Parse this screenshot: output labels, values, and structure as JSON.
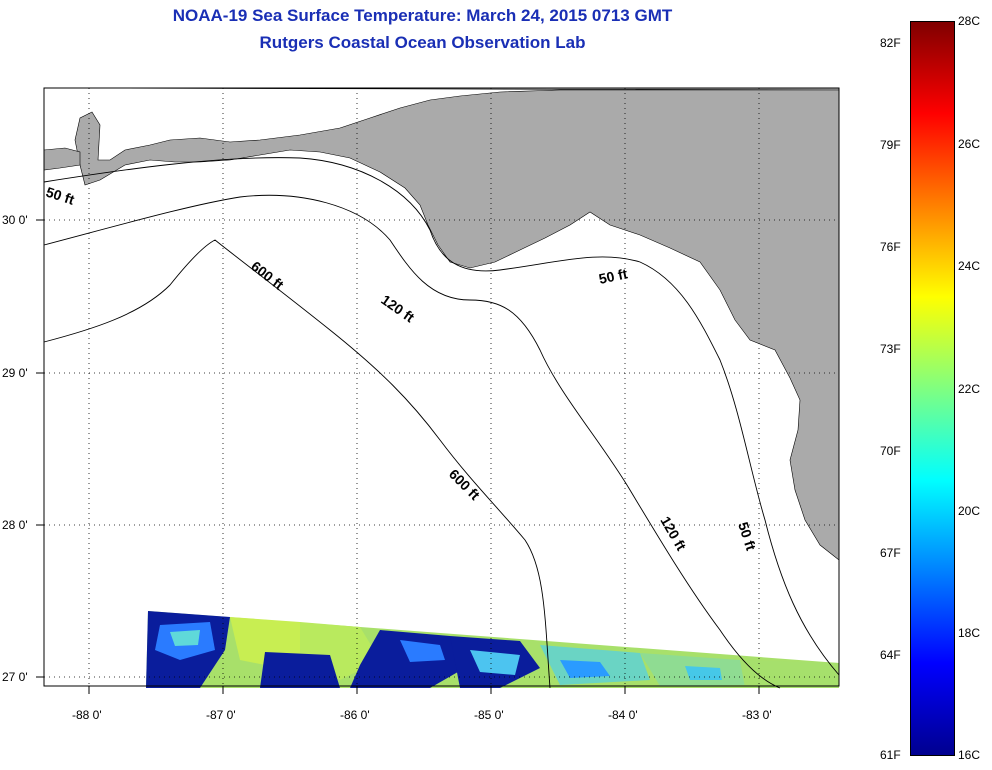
{
  "title": {
    "line1": "NOAA-19 Sea Surface Temperature:  March 24, 2015 0713 GMT",
    "line2": "Rutgers Coastal Ocean Observation Lab"
  },
  "axes": {
    "lon_labels": [
      "-88 0'",
      "-87 0'",
      "-86 0'",
      "-85 0'",
      "-84 0'",
      "-83 0'"
    ],
    "lat_labels": [
      "30 0'",
      "29 0'",
      "28 0'",
      "27 0'"
    ]
  },
  "contours": {
    "c50_west": "50 ft",
    "c50_east": "50 ft",
    "c50_south": "50 ft",
    "c120_north": "120 ft",
    "c120_south": "120 ft",
    "c600_north": "600 ft",
    "c600_south": "600 ft"
  },
  "colorbar": {
    "fahrenheit": [
      "82F",
      "79F",
      "76F",
      "73F",
      "70F",
      "67F",
      "64F",
      "61F"
    ],
    "celsius": [
      "28C",
      "26C",
      "24C",
      "22C",
      "20C",
      "18C",
      "16C"
    ]
  },
  "colors": {
    "title": "#1a2fb5",
    "land": "#aaaaaa",
    "ocean": "#ffffff",
    "sst_low": "#00008f",
    "sst_high": "#800000"
  }
}
